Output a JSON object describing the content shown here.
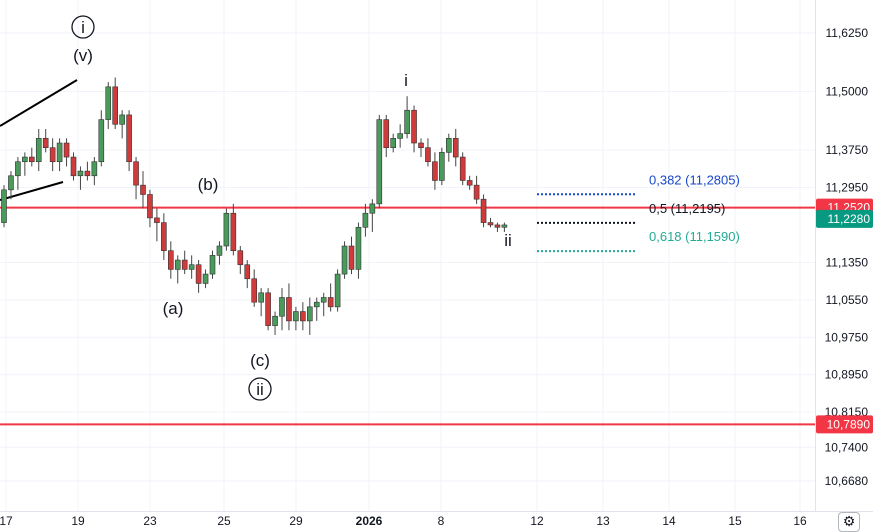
{
  "chart_data": {
    "type": "candlestick",
    "y_axis": {
      "ticks": [
        "11,6250",
        "11,5000",
        "11,3750",
        "11,2950",
        "11,1350",
        "11,0550",
        "10,9750",
        "10,8950",
        "10,8150",
        "10,7400",
        "10,6680"
      ],
      "price_tags": [
        {
          "label": "11,2520",
          "color": "#f23645"
        },
        {
          "label": "11,2280",
          "color": "#089981"
        },
        {
          "label": "10,7890",
          "color": "#f23645"
        }
      ]
    },
    "x_axis": {
      "ticks": [
        {
          "label": "17",
          "bold": false
        },
        {
          "label": "19",
          "bold": false
        },
        {
          "label": "23",
          "bold": false
        },
        {
          "label": "25",
          "bold": false
        },
        {
          "label": "29",
          "bold": false
        },
        {
          "label": "2026",
          "bold": true
        },
        {
          "label": "8",
          "bold": false
        },
        {
          "label": "12",
          "bold": false
        },
        {
          "label": "13",
          "bold": false
        },
        {
          "label": "14",
          "bold": false
        },
        {
          "label": "15",
          "bold": false
        },
        {
          "label": "16",
          "bold": false
        }
      ]
    },
    "horizontal_lines": [
      {
        "price": 11.252,
        "color": "#f23645"
      },
      {
        "price": 10.789,
        "color": "#f23645"
      }
    ],
    "fib_levels": [
      {
        "label": "0,382 (11,2805)",
        "price": 11.2805,
        "color": "#1848cc"
      },
      {
        "label": "0,5 (11,2195)",
        "price": 11.2195,
        "color": "#131722"
      },
      {
        "label": "0,618 (11,1590)",
        "price": 11.159,
        "color": "#22ab94"
      }
    ],
    "wave_labels": [
      {
        "text": "i",
        "circled": true
      },
      {
        "text": "(v)",
        "circled": false
      },
      {
        "text": "(b)",
        "circled": false
      },
      {
        "text": "(a)",
        "circled": false
      },
      {
        "text": "(c)",
        "circled": false
      },
      {
        "text": "ii",
        "circled": true
      },
      {
        "text": "i",
        "circled": false
      },
      {
        "text": "ii",
        "circled": false
      }
    ],
    "candles": [
      [
        11.22,
        11.3,
        11.21,
        11.29
      ],
      [
        11.29,
        11.33,
        11.27,
        11.32
      ],
      [
        11.32,
        11.36,
        11.29,
        11.35
      ],
      [
        11.35,
        11.37,
        11.32,
        11.36
      ],
      [
        11.36,
        11.38,
        11.34,
        11.35
      ],
      [
        11.35,
        11.42,
        11.33,
        11.4
      ],
      [
        11.4,
        11.42,
        11.37,
        11.38
      ],
      [
        11.38,
        11.4,
        11.33,
        11.35
      ],
      [
        11.35,
        11.4,
        11.33,
        11.39
      ],
      [
        11.39,
        11.4,
        11.34,
        11.36
      ],
      [
        11.36,
        11.37,
        11.31,
        11.32
      ],
      [
        11.32,
        11.34,
        11.29,
        11.33
      ],
      [
        11.33,
        11.35,
        11.31,
        11.32
      ],
      [
        11.32,
        11.36,
        11.3,
        11.35
      ],
      [
        11.35,
        11.46,
        11.34,
        11.44
      ],
      [
        11.44,
        11.52,
        11.42,
        11.51
      ],
      [
        11.51,
        11.53,
        11.42,
        11.43
      ],
      [
        11.43,
        11.46,
        11.4,
        11.45
      ],
      [
        11.45,
        11.46,
        11.33,
        11.35
      ],
      [
        11.35,
        11.36,
        11.27,
        11.3
      ],
      [
        11.3,
        11.33,
        11.25,
        11.28
      ],
      [
        11.28,
        11.29,
        11.21,
        11.23
      ],
      [
        11.23,
        11.25,
        11.18,
        11.22
      ],
      [
        11.22,
        11.24,
        11.14,
        11.16
      ],
      [
        11.16,
        11.18,
        11.1,
        11.12
      ],
      [
        11.12,
        11.15,
        11.09,
        11.14
      ],
      [
        11.14,
        11.16,
        11.11,
        11.12
      ],
      [
        11.12,
        11.15,
        11.1,
        11.13
      ],
      [
        11.13,
        11.14,
        11.07,
        11.09
      ],
      [
        11.09,
        11.12,
        11.08,
        11.11
      ],
      [
        11.11,
        11.16,
        11.1,
        11.15
      ],
      [
        11.15,
        11.18,
        11.13,
        11.17
      ],
      [
        11.17,
        11.25,
        11.16,
        11.24
      ],
      [
        11.24,
        11.26,
        11.15,
        11.16
      ],
      [
        11.16,
        11.17,
        11.11,
        11.13
      ],
      [
        11.13,
        11.14,
        11.08,
        11.1
      ],
      [
        11.1,
        11.12,
        11.04,
        11.05
      ],
      [
        11.05,
        11.08,
        11.02,
        11.07
      ],
      [
        11.07,
        11.08,
        10.99,
        11.0
      ],
      [
        11.0,
        11.03,
        10.98,
        11.02
      ],
      [
        11.02,
        11.08,
        10.99,
        11.06
      ],
      [
        11.06,
        11.09,
        10.99,
        11.01
      ],
      [
        11.01,
        11.04,
        10.99,
        11.03
      ],
      [
        11.03,
        11.05,
        10.99,
        11.01
      ],
      [
        11.01,
        11.06,
        10.98,
        11.04
      ],
      [
        11.04,
        11.06,
        11.01,
        11.05
      ],
      [
        11.05,
        11.07,
        11.02,
        11.06
      ],
      [
        11.06,
        11.09,
        11.03,
        11.04
      ],
      [
        11.04,
        11.12,
        11.03,
        11.11
      ],
      [
        11.11,
        11.18,
        11.1,
        11.17
      ],
      [
        11.17,
        11.19,
        11.11,
        11.12
      ],
      [
        11.12,
        11.22,
        11.1,
        11.21
      ],
      [
        11.21,
        11.26,
        11.19,
        11.24
      ],
      [
        11.24,
        11.27,
        11.2,
        11.26
      ],
      [
        11.26,
        11.45,
        11.25,
        11.44
      ],
      [
        11.44,
        11.45,
        11.36,
        11.38
      ],
      [
        11.38,
        11.41,
        11.37,
        11.4
      ],
      [
        11.4,
        11.43,
        11.38,
        11.41
      ],
      [
        11.41,
        11.49,
        11.4,
        11.46
      ],
      [
        11.46,
        11.47,
        11.37,
        11.39
      ],
      [
        11.39,
        11.4,
        11.36,
        11.38
      ],
      [
        11.38,
        11.4,
        11.34,
        11.35
      ],
      [
        11.35,
        11.37,
        11.29,
        11.31
      ],
      [
        11.31,
        11.38,
        11.3,
        11.37
      ],
      [
        11.37,
        11.41,
        11.35,
        11.4
      ],
      [
        11.4,
        11.42,
        11.34,
        11.36
      ],
      [
        11.36,
        11.37,
        11.3,
        11.31
      ],
      [
        11.31,
        11.32,
        11.29,
        11.3
      ],
      [
        11.3,
        11.32,
        11.26,
        11.27
      ],
      [
        11.27,
        11.28,
        11.21,
        11.22
      ],
      [
        11.22,
        11.23,
        11.21,
        11.215
      ],
      [
        11.215,
        11.22,
        11.2,
        11.21
      ],
      [
        11.21,
        11.22,
        11.2,
        11.215
      ]
    ]
  }
}
